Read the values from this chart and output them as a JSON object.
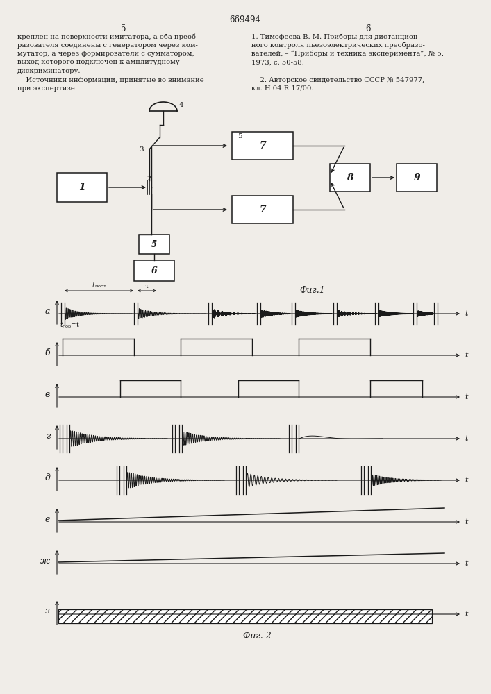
{
  "title": "669494",
  "bg_color": "#f0ede8",
  "line_color": "#1a1a1a",
  "fig1_label": "Фиг.1",
  "fig2_label": "Фиг. 2",
  "waveform_labels": [
    "а",
    "б",
    "в",
    "г",
    "д",
    "е",
    "ж",
    "з"
  ],
  "left_text_lines": [
    "креплен на поверхности имитатора, а оба преоб-",
    "разователя соединены с генератором через ком-",
    "мутатор, а через формирователи с сумматором,",
    "выход которого подключен к амплитудному",
    "дискриминатору.",
    "    Источники информации, принятые во внимание",
    "при экспертизе"
  ],
  "right_text_lines": [
    "1. Тимофеева В. М. Приборы для дистанцион-",
    "ного контроля пьезоэлектрических преобразо-",
    "вателей, – “Приборы и техника эксперимента”, № 5,",
    "1973, с. 50-58.",
    "",
    "    2. Авторское свидетельство СССР № 547977,",
    "кл. Н 04 R 17/00."
  ]
}
